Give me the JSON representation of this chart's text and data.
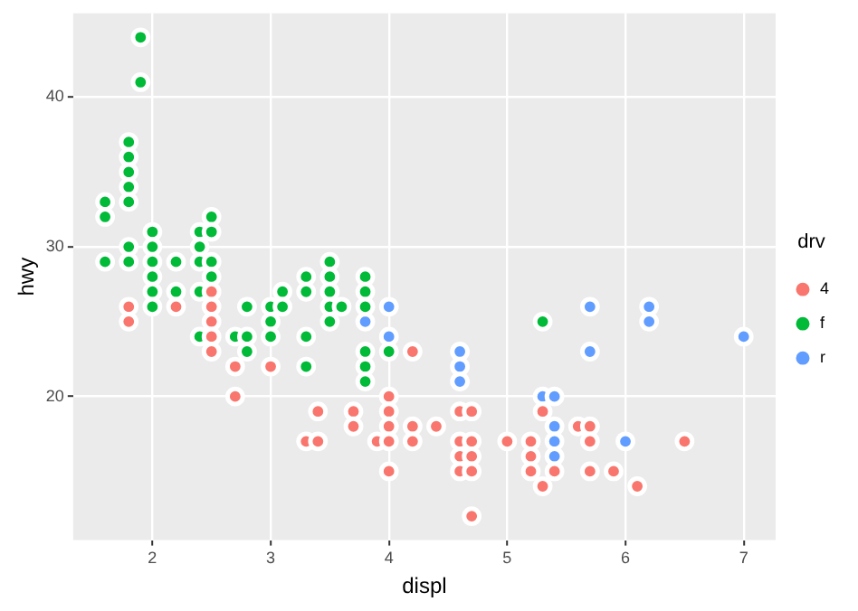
{
  "chart_data": {
    "type": "scatter",
    "xlabel": "displ",
    "ylabel": "hwy",
    "legend_title": "drv",
    "legend": "right",
    "grid": true,
    "marker": "circle",
    "xlim": [
      1.33,
      7.27
    ],
    "ylim": [
      10.4,
      45.6
    ],
    "xticks": [
      2,
      3,
      4,
      5,
      6,
      7
    ],
    "yticks": [
      20,
      30,
      40
    ],
    "series": [
      {
        "name": "4",
        "color": "#f8766d",
        "x": [
          1.8,
          1.8,
          2.2,
          2.5,
          2.5,
          2.5,
          2.5,
          2.5,
          2.7,
          2.7,
          3.0,
          3.3,
          3.4,
          3.4,
          3.7,
          3.7,
          3.9,
          4.0,
          4.0,
          4.0,
          4.0,
          4.0,
          4.2,
          4.2,
          4.2,
          4.4,
          4.6,
          4.6,
          4.6,
          4.6,
          4.7,
          4.7,
          4.7,
          4.7,
          4.7,
          5.0,
          5.2,
          5.2,
          5.2,
          5.3,
          5.3,
          5.4,
          5.6,
          5.7,
          5.7,
          5.7,
          5.9,
          6.1,
          6.5
        ],
        "values": [
          26,
          25,
          26,
          27,
          26,
          25,
          24,
          23,
          22,
          20,
          22,
          17,
          19,
          17,
          19,
          18,
          17,
          20,
          19,
          18,
          17,
          15,
          23,
          18,
          17,
          18,
          19,
          17,
          16,
          15,
          19,
          17,
          16,
          15,
          12,
          17,
          17,
          16,
          15,
          19,
          14,
          15,
          18,
          18,
          17,
          15,
          15,
          14,
          17
        ]
      },
      {
        "name": "f",
        "color": "#00ba38",
        "x": [
          1.6,
          1.6,
          1.6,
          1.8,
          1.8,
          1.8,
          1.8,
          1.8,
          1.8,
          1.8,
          1.9,
          1.9,
          2.0,
          2.0,
          2.0,
          2.0,
          2.0,
          2.0,
          2.2,
          2.2,
          2.4,
          2.4,
          2.4,
          2.4,
          2.4,
          2.5,
          2.5,
          2.5,
          2.5,
          2.7,
          2.8,
          2.8,
          2.8,
          3.0,
          3.0,
          3.0,
          3.1,
          3.1,
          3.3,
          3.3,
          3.3,
          3.3,
          3.5,
          3.5,
          3.5,
          3.5,
          3.5,
          3.6,
          3.8,
          3.8,
          3.8,
          3.8,
          3.8,
          3.8,
          4.0,
          5.3
        ],
        "values": [
          33,
          32,
          29,
          37,
          36,
          35,
          34,
          33,
          30,
          29,
          44,
          41,
          31,
          30,
          29,
          28,
          27,
          26,
          29,
          27,
          31,
          30,
          29,
          27,
          24,
          32,
          31,
          29,
          28,
          24,
          26,
          24,
          23,
          26,
          25,
          24,
          27,
          26,
          28,
          27,
          24,
          22,
          29,
          28,
          27,
          26,
          25,
          26,
          28,
          27,
          26,
          23,
          22,
          21,
          23,
          25
        ]
      },
      {
        "name": "r",
        "color": "#619cff",
        "x": [
          3.8,
          4.0,
          4.0,
          4.6,
          4.6,
          4.6,
          5.3,
          5.4,
          5.4,
          5.4,
          5.4,
          5.7,
          5.7,
          6.0,
          6.2,
          6.2,
          7.0
        ],
        "values": [
          25,
          26,
          24,
          23,
          22,
          21,
          20,
          20,
          18,
          17,
          16,
          26,
          23,
          17,
          26,
          25,
          24
        ]
      }
    ]
  }
}
